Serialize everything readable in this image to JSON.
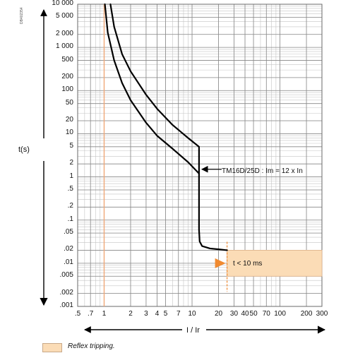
{
  "chart_data": {
    "type": "line",
    "xlabel": "I / Ir",
    "ylabel": "t(s)",
    "x_scale": "log",
    "y_scale": "log",
    "xlim": [
      0.5,
      300
    ],
    "ylim": [
      0.001,
      10000
    ],
    "grid": true,
    "x_ticks": [
      {
        "value": 0.5,
        "label": ".5"
      },
      {
        "value": 0.7,
        "label": ".7"
      },
      {
        "value": 1,
        "label": "1"
      },
      {
        "value": 2,
        "label": "2"
      },
      {
        "value": 3,
        "label": "3"
      },
      {
        "value": 4,
        "label": "4"
      },
      {
        "value": 5,
        "label": "5"
      },
      {
        "value": 7,
        "label": "7"
      },
      {
        "value": 10,
        "label": "10"
      },
      {
        "value": 20,
        "label": "20"
      },
      {
        "value": 30,
        "label": "30"
      },
      {
        "value": 40,
        "label": "40"
      },
      {
        "value": 50,
        "label": "50"
      },
      {
        "value": 70,
        "label": "70"
      },
      {
        "value": 100,
        "label": "100"
      },
      {
        "value": 200,
        "label": "200"
      },
      {
        "value": 300,
        "label": "300"
      }
    ],
    "y_ticks": [
      {
        "value": 10000,
        "label": "10 000"
      },
      {
        "value": 5000,
        "label": "5 000"
      },
      {
        "value": 2000,
        "label": "2 000"
      },
      {
        "value": 1000,
        "label": "1 000"
      },
      {
        "value": 500,
        "label": "500"
      },
      {
        "value": 200,
        "label": "200"
      },
      {
        "value": 100,
        "label": "100"
      },
      {
        "value": 50,
        "label": "50"
      },
      {
        "value": 20,
        "label": "20"
      },
      {
        "value": 10,
        "label": "10"
      },
      {
        "value": 5,
        "label": "5"
      },
      {
        "value": 2,
        "label": "2"
      },
      {
        "value": 1,
        "label": "1"
      },
      {
        "value": 0.5,
        "label": ".5"
      },
      {
        "value": 0.2,
        "label": ".2"
      },
      {
        "value": 0.1,
        "label": ".1"
      },
      {
        "value": 0.05,
        "label": ".05"
      },
      {
        "value": 0.02,
        "label": ".02"
      },
      {
        "value": 0.01,
        "label": ".01"
      },
      {
        "value": 0.005,
        "label": ".005"
      },
      {
        "value": 0.002,
        "label": ".002"
      },
      {
        "value": 0.001,
        "label": ".001"
      }
    ],
    "series": [
      {
        "x": [
          1.02,
          1.1,
          1.3,
          1.6,
          2.0,
          3.0,
          4.0,
          6.0,
          9.0,
          12.0
        ],
        "y": [
          10000,
          2200,
          500,
          150,
          60,
          18,
          9,
          4.5,
          2.2,
          1.2
        ]
      },
      {
        "x": [
          1.18,
          1.3,
          1.6,
          2.0,
          3.0,
          4.0,
          6.0,
          9.0,
          12.0
        ],
        "y": [
          10000,
          3000,
          700,
          280,
          80,
          38,
          16,
          8,
          5
        ]
      },
      {
        "x": [
          12.0,
          12.0,
          12.2,
          13.0,
          16.0,
          20.0,
          25.0
        ],
        "y": [
          1.2,
          0.06,
          0.032,
          0.025,
          0.022,
          0.021,
          0.02
        ]
      }
    ],
    "reference_line": {
      "x": 1,
      "color": "#f0a878"
    },
    "reflex_zone": {
      "x_from": 25,
      "x_to": 300,
      "y_from": 0.005,
      "y_to": 0.02,
      "label": "t < 10 ms",
      "color": "#fbdcb6"
    },
    "annotations": [
      {
        "text": "TM16D/25D : Im = 12 x In",
        "x": 12,
        "y": 1.2
      }
    ],
    "legend": {
      "swatch_color": "#fbdcb6",
      "label": "Reflex tripping."
    },
    "doc_ref": "DB402354"
  }
}
